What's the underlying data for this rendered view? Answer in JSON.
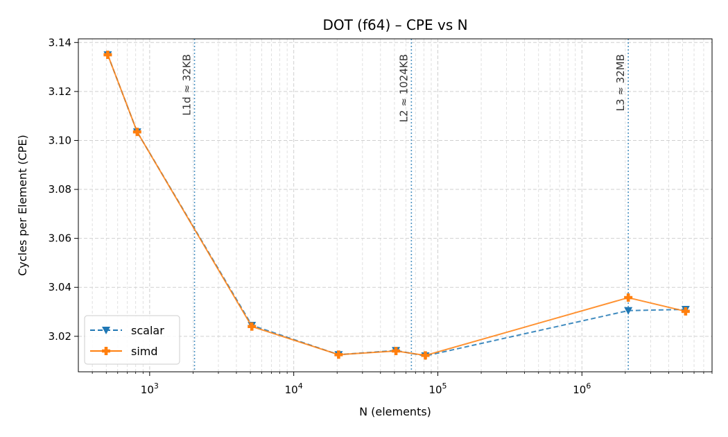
{
  "chart_data": {
    "type": "line",
    "title": "DOT (f64) – CPE vs N",
    "xlabel": "N (elements)",
    "ylabel": "Cycles per Element (CPE)",
    "xscale": "log",
    "xlim": [
      320,
      8000000
    ],
    "ylim": [
      3.0055,
      3.1415
    ],
    "yticks": [
      "3.02",
      "3.04",
      "3.06",
      "3.08",
      "3.10",
      "3.12",
      "3.14"
    ],
    "xticks": [
      {
        "base": "10",
        "exp": "3"
      },
      {
        "base": "10",
        "exp": "4"
      },
      {
        "base": "10",
        "exp": "5"
      },
      {
        "base": "10",
        "exp": "6"
      }
    ],
    "grid": true,
    "legend_position": "lower-left",
    "x": [
      512,
      819,
      5120,
      20480,
      51200,
      81920,
      2097152,
      5242880
    ],
    "series": [
      {
        "name": "scalar",
        "color": "#1f77b4",
        "linestyle": "dashed",
        "marker": "triangle-down",
        "values": [
          3.135,
          3.1035,
          3.0245,
          3.0125,
          3.0142,
          3.012,
          3.0305,
          3.031
        ]
      },
      {
        "name": "simd",
        "color": "#ff7f0e",
        "linestyle": "solid",
        "marker": "plus-filled",
        "values": [
          3.135,
          3.1035,
          3.024,
          3.0125,
          3.014,
          3.0122,
          3.0358,
          3.0302
        ]
      }
    ],
    "annotations": [
      {
        "x": 2048,
        "label": "L1d ≈ 32KB"
      },
      {
        "x": 65536,
        "label": "L2  ≈ 1024KB"
      },
      {
        "x": 2097152,
        "label": "L3  ≈ 32MB"
      }
    ]
  }
}
